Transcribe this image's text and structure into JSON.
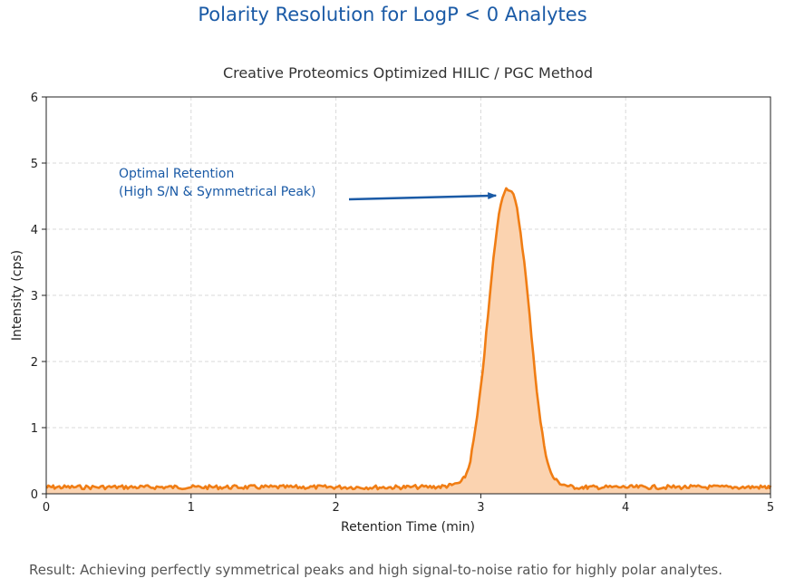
{
  "title": "Polarity Resolution for LogP < 0 Analytes",
  "footer": "Result: Achieving perfectly symmetrical peaks and high signal-to-noise ratio for highly polar analytes.",
  "colors": {
    "title": "#1a5aa6",
    "line": "#f07d14",
    "fill": "#fbd3b0",
    "annotation": "#1a5aa6",
    "grid": "#d9d9d9"
  },
  "chart_data": {
    "type": "line",
    "title": "Creative Proteomics Optimized HILIC / PGC Method",
    "xlabel": "Retention Time (min)",
    "ylabel": "Intensity (cps)",
    "xlim": [
      0,
      5
    ],
    "ylim": [
      0,
      6
    ],
    "x_ticks": [
      "0",
      "1",
      "2",
      "3",
      "4",
      "5"
    ],
    "y_ticks": [
      "0",
      "1",
      "2",
      "3",
      "4",
      "5",
      "6"
    ],
    "grid": true,
    "filled_under_curve": true,
    "baseline_level": 0.1,
    "x": [
      0,
      0.5,
      1.0,
      1.5,
      2.0,
      2.5,
      2.8,
      2.9,
      2.95,
      3.0,
      3.05,
      3.1,
      3.15,
      3.2,
      3.25,
      3.3,
      3.35,
      3.4,
      3.45,
      3.5,
      3.6,
      3.7,
      4.0,
      4.5,
      5.0
    ],
    "y": [
      0.1,
      0.1,
      0.1,
      0.1,
      0.1,
      0.1,
      0.13,
      0.3,
      0.8,
      1.6,
      2.7,
      3.8,
      4.5,
      4.6,
      4.3,
      3.5,
      2.4,
      1.3,
      0.6,
      0.25,
      0.12,
      0.1,
      0.1,
      0.1,
      0.1
    ],
    "annotations": [
      {
        "lines": [
          "Optimal Retention",
          "(High S/N & Symmetrical Peak)"
        ],
        "points_to": {
          "x": 3.18,
          "y": 4.55
        }
      }
    ]
  }
}
